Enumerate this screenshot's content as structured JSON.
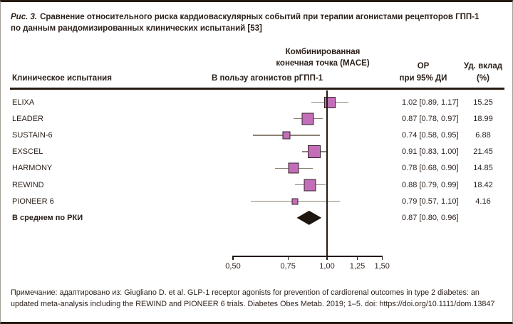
{
  "figure": {
    "caption_prefix": "Рис. 3.",
    "caption_bold": "Сравнение относительного риска кардиоваскулярных событий при терапии агонистами рецепторов ГПП-1",
    "caption_line2": "по данным рандомизированных клинических испытаний [53]"
  },
  "header": {
    "endpoint_line1": "Комбинированная",
    "endpoint_line2": "конечная точка (MACE)",
    "col_trial": "Клиническое испытания",
    "col_favors": "В пользу агонистов рГПП-1",
    "col_or_line1": "ОР",
    "col_or_line2": "при 95% ДИ",
    "col_weight_line1": "Уд. вклад",
    "col_weight_line2": "(%)"
  },
  "chart_data": {
    "type": "forest",
    "x_scale": "log10",
    "x_range": [
      0.5,
      1.5
    ],
    "reference_line": 1.0,
    "axis_tick_values": [
      0.5,
      0.75,
      1.0,
      1.25,
      1.5
    ],
    "axis_tick_labels": [
      "0,50",
      "0,75",
      "1,00",
      "1,25",
      "1,50"
    ],
    "rows": [
      {
        "trial": "ELIXA",
        "or": 1.02,
        "ci_low": 0.89,
        "ci_high": 1.17,
        "weight": 15.25,
        "or_label": "1.02 [0.89, 1.17]",
        "weight_label": "15.25",
        "summary": false
      },
      {
        "trial": "LEADER",
        "or": 0.87,
        "ci_low": 0.78,
        "ci_high": 0.97,
        "weight": 18.99,
        "or_label": "0.87 [0.78, 0.97]",
        "weight_label": "18.99",
        "summary": false
      },
      {
        "trial": "SUSTAIN-6",
        "or": 0.74,
        "ci_low": 0.58,
        "ci_high": 0.95,
        "weight": 6.88,
        "or_label": "0.74 [0.58, 0.95]",
        "weight_label": "6.88",
        "summary": false
      },
      {
        "trial": "EXSCEL",
        "or": 0.91,
        "ci_low": 0.83,
        "ci_high": 1.0,
        "weight": 21.45,
        "or_label": "0.91 [0.83, 1.00]",
        "weight_label": "21.45",
        "summary": false
      },
      {
        "trial": "HARMONY",
        "or": 0.78,
        "ci_low": 0.68,
        "ci_high": 0.9,
        "weight": 14.85,
        "or_label": "0.78 [0.68, 0.90]",
        "weight_label": "14.85",
        "summary": false
      },
      {
        "trial": "REWIND",
        "or": 0.88,
        "ci_low": 0.79,
        "ci_high": 0.99,
        "weight": 18.42,
        "or_label": "0.88 [0.79, 0.99]",
        "weight_label": "18.42",
        "summary": false
      },
      {
        "trial": "PIONEER 6",
        "or": 0.79,
        "ci_low": 0.57,
        "ci_high": 1.1,
        "weight": 4.16,
        "or_label": "0.79 [0.57, 1.10]",
        "weight_label": "4.16",
        "summary": false
      },
      {
        "trial": "В среднем по РКИ",
        "or": 0.87,
        "ci_low": 0.8,
        "ci_high": 0.96,
        "weight": null,
        "or_label": "0.87 [0.80, 0.96]",
        "weight_label": "",
        "summary": true
      }
    ],
    "colors": {
      "square": "#c26eb8",
      "square_border": "#35232c",
      "ci_line": "#8c8275",
      "axis": "#241a12",
      "diamond": "#1f1610",
      "text": "#2c211b"
    }
  },
  "note": {
    "line1": "Примечание: адаптировано из: Giugliano D. et al. GLP-1 receptor agonists for prevention of cardiorenal outcomes in type 2 diabetes: an",
    "line2": "updated meta-analysis including the REWIND and PIONEER 6 trials. Diabetes Obes Metab. 2019; 1–5. doi: https://doi.org/10.1111/dom.13847"
  }
}
